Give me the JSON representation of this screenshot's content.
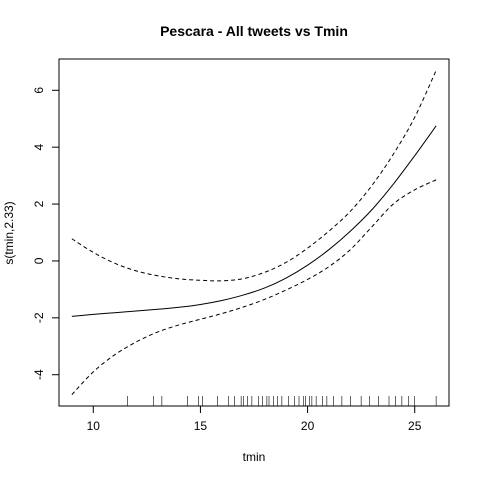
{
  "chart_data": {
    "type": "line",
    "title": "Pescara - All tweets vs Tmin",
    "xlabel": "tmin",
    "ylabel": "s(tmin,2.33)",
    "xlim": [
      8.4,
      26.6
    ],
    "ylim": [
      -5.1,
      7.1
    ],
    "x_ticks": [
      10,
      15,
      20,
      25
    ],
    "y_ticks": [
      -4,
      -2,
      0,
      2,
      4,
      6
    ],
    "grid": false,
    "series": [
      {
        "style": "solid",
        "x": [
          9,
          10,
          11,
          12,
          13,
          14,
          15,
          16,
          17,
          18,
          19,
          20,
          21,
          22,
          23,
          24,
          25,
          26
        ],
        "y": [
          -1.95,
          -1.88,
          -1.82,
          -1.76,
          -1.7,
          -1.63,
          -1.53,
          -1.39,
          -1.2,
          -0.95,
          -0.6,
          -0.15,
          0.4,
          1.05,
          1.8,
          2.7,
          3.7,
          4.75
        ]
      },
      {
        "style": "dashed",
        "x": [
          9,
          10,
          11,
          12,
          13,
          14,
          15,
          16,
          17,
          18,
          19,
          20,
          21,
          22,
          23,
          24,
          25,
          26
        ],
        "y": [
          0.78,
          0.3,
          -0.08,
          -0.35,
          -0.52,
          -0.63,
          -0.68,
          -0.7,
          -0.62,
          -0.4,
          -0.05,
          0.45,
          1.05,
          1.75,
          2.65,
          3.75,
          5.05,
          6.7
        ]
      },
      {
        "style": "dashed",
        "x": [
          9,
          10,
          11,
          12,
          13,
          14,
          15,
          16,
          17,
          18,
          19,
          20,
          21,
          22,
          23,
          24,
          25,
          26
        ],
        "y": [
          -4.7,
          -3.9,
          -3.3,
          -2.85,
          -2.5,
          -2.25,
          -2.05,
          -1.85,
          -1.62,
          -1.35,
          -1.02,
          -0.65,
          -0.2,
          0.4,
          1.2,
          2.0,
          2.5,
          2.85
        ]
      }
    ],
    "rug": [
      11.6,
      12.8,
      13.2,
      14.4,
      14.9,
      15.1,
      15.8,
      16.3,
      16.6,
      16.9,
      17.0,
      17.2,
      17.4,
      17.7,
      17.9,
      18.1,
      18.2,
      18.4,
      18.6,
      18.8,
      19.1,
      19.4,
      19.6,
      19.8,
      19.9,
      20.1,
      20.2,
      20.4,
      20.7,
      20.9,
      21.2,
      21.6,
      22.0,
      22.5,
      22.9,
      23.3,
      23.8,
      24.1,
      24.4,
      24.7,
      25.0,
      26.0
    ]
  }
}
